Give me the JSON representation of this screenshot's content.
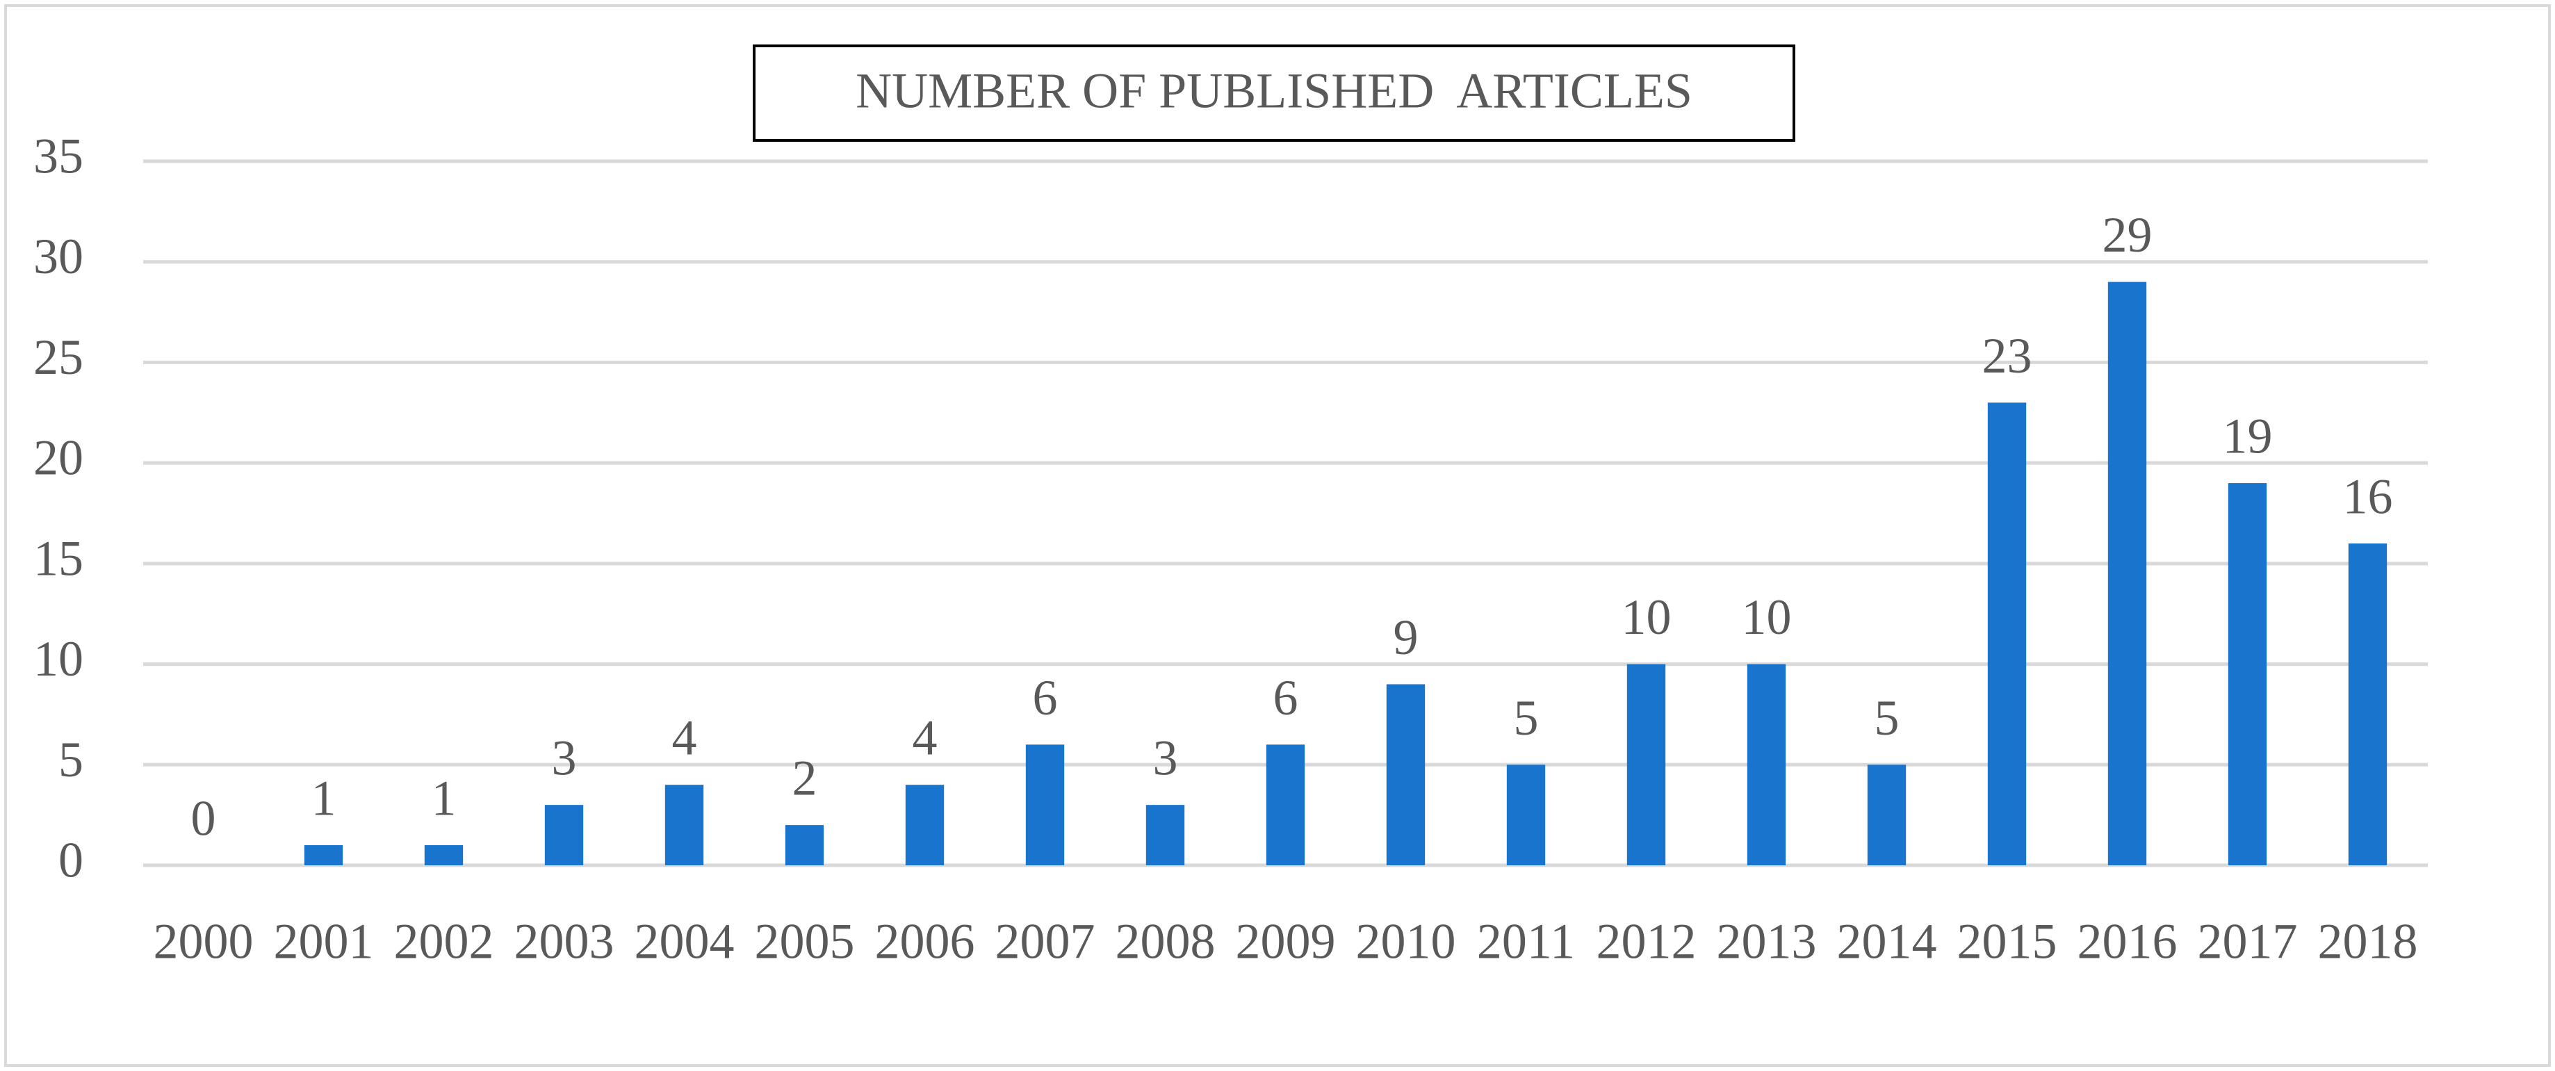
{
  "chart_data": {
    "type": "bar",
    "title": "NUMBER OF PUBLISHED  ARTICLES",
    "categories": [
      "2000",
      "2001",
      "2002",
      "2003",
      "2004",
      "2005",
      "2006",
      "2007",
      "2008",
      "2009",
      "2010",
      "2011",
      "2012",
      "2013",
      "2014",
      "2015",
      "2016",
      "2017",
      "2018"
    ],
    "values": [
      0,
      1,
      1,
      3,
      4,
      2,
      4,
      6,
      3,
      6,
      9,
      5,
      10,
      10,
      5,
      23,
      29,
      19,
      16
    ],
    "color": "#1874cd",
    "ylim": [
      0,
      35
    ],
    "yticks": [
      0,
      5,
      10,
      15,
      20,
      25,
      30,
      35
    ],
    "grid": true
  }
}
